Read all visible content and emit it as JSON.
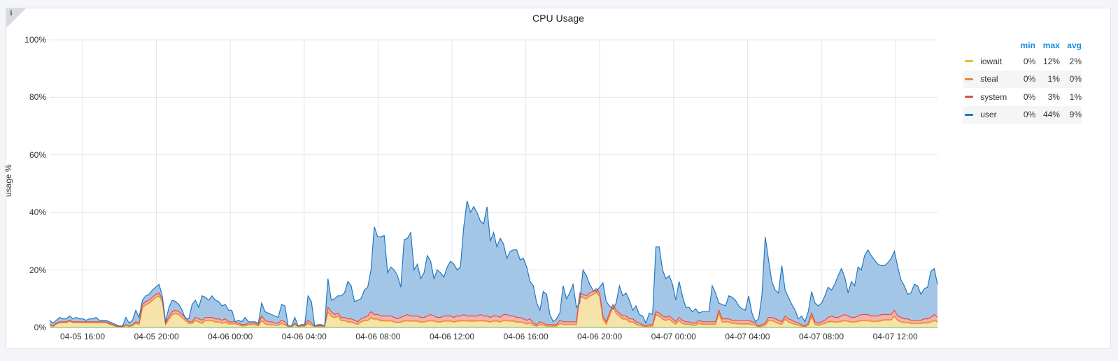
{
  "panel": {
    "title": "CPU Usage",
    "info_icon": "i"
  },
  "colors": {
    "iowait": "#eab839",
    "steal": "#ef843c",
    "system": "#e24d42",
    "user": "#1f78c1",
    "iowait_fill": "#f6e3ab",
    "steal_fill": "#f7c6a2",
    "system_fill": "#f3b3ae",
    "user_fill": "#a4c6e6",
    "grid": "#e4e5e8",
    "legend_header": "#1a8fde"
  },
  "legend": {
    "headers": [
      "min",
      "max",
      "avg"
    ],
    "items": [
      {
        "name": "iowait",
        "min": "0%",
        "max": "12%",
        "avg": "2%"
      },
      {
        "name": "steal",
        "min": "0%",
        "max": "1%",
        "avg": "0%"
      },
      {
        "name": "system",
        "min": "0%",
        "max": "3%",
        "avg": "1%"
      },
      {
        "name": "user",
        "min": "0%",
        "max": "44%",
        "avg": "9%"
      }
    ]
  },
  "chart_data": {
    "type": "area",
    "stacked": true,
    "title": "CPU Usage",
    "xlabel": "",
    "ylabel": "usage %",
    "ylim": [
      0,
      100
    ],
    "yticks": [
      "0%",
      "20%",
      "40%",
      "60%",
      "80%",
      "100%"
    ],
    "xticks": [
      "04-05 16:00",
      "04-05 20:00",
      "04-06 00:00",
      "04-06 04:00",
      "04-06 08:00",
      "04-06 12:00",
      "04-06 16:00",
      "04-06 20:00",
      "04-07 00:00",
      "04-07 04:00",
      "04-07 08:00",
      "04-07 12:00"
    ],
    "grid": true,
    "legend_position": "right",
    "x_start": "04-05 14:12",
    "x_end": "04-07 14:32",
    "sample_interval_min": 20,
    "series_order_bottom_to_top": [
      "iowait",
      "steal",
      "system",
      "user"
    ],
    "total": [
      2.5,
      1.5,
      2.5,
      3.5,
      3,
      3,
      4,
      3,
      3.5,
      3,
      3,
      2.5,
      3,
      3,
      3.5,
      2.5,
      2.5,
      2.5,
      2,
      1.5,
      1,
      0.5,
      0.5,
      3.5,
      1.5,
      2.5,
      6,
      3.5,
      9.5,
      11,
      11.5,
      13,
      14,
      15,
      11,
      2,
      7,
      9.5,
      9,
      8,
      6,
      3,
      3,
      8,
      9.5,
      7,
      11,
      10.5,
      9.5,
      11,
      9.5,
      9,
      7.5,
      8,
      6,
      6,
      2,
      2.5,
      2,
      3.5,
      2,
      2,
      2,
      1.5,
      8.5,
      5.5,
      5,
      4.5,
      4,
      3.5,
      8,
      7.5,
      0.5,
      0.5,
      3.5,
      0.5,
      1,
      1,
      11,
      9,
      0.5,
      1,
      1,
      0.5,
      17,
      9.5,
      10,
      11,
      11,
      12,
      16,
      14.5,
      9,
      9.5,
      10,
      13,
      14,
      20,
      35,
      31.5,
      31.5,
      32,
      19,
      21,
      20,
      18,
      14,
      30.5,
      31,
      33,
      20,
      22,
      17,
      19,
      25,
      23,
      17,
      20,
      19,
      17.5,
      21,
      23,
      22,
      20,
      21,
      35,
      44,
      40,
      42,
      40,
      37,
      36,
      42,
      30,
      33,
      28,
      31,
      29,
      24,
      26.5,
      27,
      27,
      23.5,
      24,
      21,
      16,
      14.5,
      8.5,
      6,
      12.5,
      11.5,
      4.5,
      2,
      3,
      5,
      14.5,
      10,
      12,
      15,
      7,
      8.5,
      20,
      18,
      15,
      13,
      12.5,
      14,
      15.5,
      9,
      7.5,
      6.5,
      8.5,
      14.5,
      11,
      12,
      9.5,
      6,
      7.5,
      4.5,
      4,
      1.5,
      5,
      4.5,
      28,
      28,
      20,
      17,
      18,
      15,
      9.5,
      16,
      11,
      7,
      7,
      5.5,
      6.5,
      5,
      5.5,
      5.5,
      5.5,
      14.5,
      12,
      8.5,
      8,
      7.5,
      11,
      10.5,
      9.5,
      7.5,
      6.5,
      6,
      11,
      5,
      2,
      3,
      11,
      31.5,
      23.5,
      16,
      13,
      12,
      21.5,
      13,
      10.5,
      8,
      6,
      3,
      4,
      2,
      5.5,
      12.5,
      8.5,
      7.5,
      8.5,
      11,
      14,
      13,
      15,
      18,
      20.5,
      17.5,
      12,
      16,
      14.5,
      21,
      20,
      25,
      27,
      25,
      23.5,
      22,
      21.5,
      21.5,
      22.5,
      24,
      26.5,
      21,
      16.5,
      14.5,
      11.5,
      12,
      15,
      14.5,
      11.5,
      13.5,
      14,
      19.5,
      20.5,
      15
    ],
    "system_top": [
      1,
      0.5,
      1.5,
      2,
      2,
      2,
      2.5,
      2,
      2,
      2,
      2,
      2,
      2,
      2,
      2,
      2,
      2,
      2,
      1.5,
      1,
      0.5,
      0.3,
      0.3,
      1,
      0.5,
      1,
      2,
      1.5,
      8,
      9,
      9.5,
      10.5,
      11.5,
      12,
      10,
      1.5,
      4,
      5.5,
      6,
      5.5,
      4.5,
      3.5,
      2,
      2,
      3.5,
      3,
      2.5,
      3.5,
      3.5,
      3.5,
      3,
      3,
      2.5,
      3,
      2,
      2,
      2,
      1.5,
      1,
      1,
      1.5,
      1.5,
      1.5,
      1,
      4,
      2.5,
      2,
      2,
      1.5,
      1.5,
      2.5,
      2,
      0.5,
      0.5,
      1.5,
      0.5,
      0.8,
      0.8,
      2.5,
      1.5,
      0.5,
      0.7,
      0.7,
      0.5,
      7,
      5.5,
      4.5,
      5,
      3.5,
      3.5,
      3,
      3,
      2.5,
      2,
      3,
      3.5,
      4,
      5.5,
      4.5,
      4.5,
      4,
      4,
      4,
      4,
      3.5,
      3,
      3.5,
      4,
      4.5,
      4,
      4,
      4,
      3.5,
      3.5,
      4,
      4.5,
      4,
      3.5,
      3.5,
      4,
      4,
      4,
      3.5,
      4,
      4,
      4.5,
      4,
      4,
      4,
      4,
      4.5,
      4,
      4,
      3.5,
      4,
      4,
      3.5,
      4.5,
      4.5,
      4,
      4,
      3.5,
      3.5,
      3,
      2.5,
      3,
      1.5,
      1,
      2,
      1.5,
      1,
      1,
      1,
      1,
      2.5,
      2,
      2,
      2,
      2,
      2,
      12,
      11.5,
      11,
      12,
      12.5,
      13.5,
      12,
      4,
      2,
      5,
      8,
      6,
      5,
      4,
      4,
      3,
      3,
      2,
      1.5,
      1,
      0.5,
      1,
      1,
      5.5,
      5,
      4,
      3.5,
      4,
      3,
      2,
      3.5,
      2.5,
      2,
      2,
      1.5,
      1.5,
      2.5,
      2,
      2,
      2,
      2,
      2,
      6,
      3,
      3,
      3,
      2.5,
      2.5,
      2.5,
      2.5,
      2.5,
      2.5,
      2,
      1.5,
      0.5,
      1,
      1.5,
      3.5,
      3.5,
      3,
      2.5,
      2,
      4,
      3,
      2.5,
      2,
      1.5,
      1,
      0.5,
      1.5,
      5,
      2,
      1.5,
      2,
      2.5,
      3.5,
      4,
      3.5,
      3.5,
      4,
      4.5,
      4,
      3.5,
      3.5,
      4,
      4.5,
      4.5,
      4.5,
      4,
      4,
      4,
      4.5,
      4.5,
      4.5,
      4.5,
      6,
      4,
      3.5,
      3,
      3,
      2.5,
      2.5,
      2.5,
      2.5,
      3,
      3,
      3.5,
      4.5,
      3.5
    ],
    "steal_top": [
      0.8,
      0.4,
      1.2,
      1.7,
      1.7,
      1.7,
      2.2,
      1.7,
      1.7,
      1.7,
      1.7,
      1.7,
      1.7,
      1.7,
      1.7,
      1.7,
      1.7,
      1.7,
      1.2,
      0.8,
      0.4,
      0.2,
      0.2,
      0.7,
      0.4,
      0.7,
      1.5,
      1.1,
      7,
      8,
      8.5,
      9.5,
      10.5,
      11,
      9,
      1.1,
      3,
      4.5,
      5,
      4.5,
      3.5,
      2.5,
      1.5,
      1.5,
      2.5,
      2,
      1.5,
      2.5,
      2.5,
      2.5,
      2,
      2,
      1.5,
      2,
      1.3,
      1.3,
      1.3,
      1,
      0.6,
      0.6,
      1,
      1,
      1,
      0.6,
      2.5,
      1.3,
      1,
      1,
      0.8,
      0.8,
      1.5,
      1,
      0.3,
      0.3,
      1,
      0.3,
      0.5,
      0.5,
      1.5,
      0.8,
      0.3,
      0.4,
      0.4,
      0.3,
      5.5,
      4,
      3.5,
      4,
      2.5,
      2.5,
      2,
      2,
      1.5,
      1.2,
      2,
      2.5,
      2.5,
      3.5,
      3,
      3,
      2.5,
      2.5,
      2.5,
      2.5,
      2,
      1.8,
      2,
      2.3,
      2.5,
      2.3,
      2.3,
      2.3,
      2,
      2,
      2.3,
      2.5,
      2.3,
      2,
      2,
      2.3,
      2.3,
      2.3,
      2,
      2.3,
      2.3,
      2.5,
      2.3,
      2.3,
      2.3,
      2.3,
      2.5,
      2.3,
      2.3,
      2,
      2.3,
      2.3,
      2,
      2.5,
      2.5,
      2.3,
      2.3,
      2,
      2,
      1.7,
      1.3,
      1.7,
      0.8,
      0.5,
      1.1,
      0.8,
      0.5,
      0.5,
      0.5,
      0.5,
      1.5,
      1.1,
      1.1,
      1.1,
      1.1,
      1.1,
      11,
      10.5,
      10,
      11,
      11.5,
      12.5,
      11,
      3,
      1.2,
      4,
      7,
      5,
      4,
      3,
      3,
      2,
      2,
      1.2,
      0.8,
      0.5,
      0.3,
      0.5,
      0.5,
      4.5,
      4,
      3,
      2.5,
      3,
      2,
      1.2,
      2.5,
      1.5,
      1.2,
      1.2,
      0.8,
      0.8,
      1.5,
      1.2,
      1.2,
      1.2,
      1.2,
      1.2,
      5,
      2,
      2,
      2,
      1.5,
      1.5,
      1.3,
      1.3,
      1.3,
      1.3,
      1.1,
      0.8,
      0.3,
      0.5,
      0.8,
      2.5,
      2.5,
      2,
      1.5,
      1.2,
      3,
      2,
      1.5,
      1.2,
      0.8,
      0.5,
      0.3,
      0.8,
      4,
      1.2,
      0.8,
      1.2,
      1.5,
      2,
      2.2,
      2,
      2,
      2.2,
      2.5,
      2.2,
      2,
      2,
      2.2,
      2.5,
      2.5,
      2.5,
      2.2,
      2.2,
      2.2,
      2.5,
      2.7,
      2.7,
      2.7,
      4,
      2.5,
      2,
      1.8,
      1.8,
      1.5,
      1.5,
      1.5,
      1.5,
      1.7,
      1.7,
      2,
      2.5,
      2
    ],
    "iowait_top": [
      0.7,
      0.3,
      1.1,
      1.6,
      1.6,
      1.6,
      2.1,
      1.6,
      1.6,
      1.6,
      1.6,
      1.6,
      1.6,
      1.6,
      1.6,
      1.6,
      1.6,
      1.6,
      1.1,
      0.7,
      0.3,
      0.1,
      0.1,
      0.6,
      0.3,
      0.6,
      1.4,
      1,
      6.8,
      7.8,
      8.3,
      9.3,
      10.3,
      10.8,
      8.8,
      1,
      2.8,
      4.3,
      4.8,
      4.3,
      3.3,
      2.3,
      1.3,
      1.3,
      2.3,
      1.8,
      1.3,
      2.3,
      2.3,
      2.3,
      1.8,
      1.8,
      1.3,
      1.8,
      1.2,
      1.2,
      1.2,
      0.9,
      0.5,
      0.5,
      0.9,
      0.9,
      0.9,
      0.5,
      2.3,
      1.2,
      0.9,
      0.9,
      0.7,
      0.7,
      1.3,
      0.9,
      0.2,
      0.2,
      0.9,
      0.2,
      0.4,
      0.4,
      1.3,
      0.7,
      0.2,
      0.3,
      0.3,
      0.2,
      5.3,
      3.8,
      3.3,
      3.8,
      2.3,
      2.3,
      1.8,
      1.8,
      1.3,
      1,
      1.8,
      2.3,
      2.3,
      3.2,
      2.7,
      2.7,
      2.2,
      2.2,
      2.2,
      2.2,
      1.8,
      1.6,
      1.8,
      2.1,
      2.3,
      2.1,
      2.1,
      2.1,
      1.8,
      1.8,
      2.1,
      2.3,
      2.1,
      1.8,
      1.8,
      2.1,
      2.1,
      2.1,
      1.8,
      2.1,
      2.1,
      2.3,
      2.1,
      2.1,
      2.1,
      2.1,
      2.3,
      2.1,
      2.1,
      1.8,
      2.1,
      2.1,
      1.8,
      2.3,
      2.3,
      2.1,
      2.1,
      1.8,
      1.8,
      1.5,
      1.1,
      1.5,
      0.7,
      0.4,
      1,
      0.7,
      0.4,
      0.4,
      0.4,
      0.4,
      1.3,
      1,
      1,
      1,
      1,
      1,
      10.8,
      10.3,
      9.8,
      10.8,
      11.3,
      12,
      10.8,
      2.8,
      1,
      3.8,
      6.8,
      4.8,
      3.8,
      2.8,
      2.8,
      1.8,
      1.8,
      1,
      0.7,
      0.4,
      0.2,
      0.4,
      0.4,
      4.3,
      3.8,
      2.8,
      2.3,
      2.8,
      1.8,
      1,
      2.3,
      1.3,
      1,
      1,
      0.7,
      0.7,
      1.3,
      1,
      1,
      1,
      1,
      1,
      4.8,
      1.8,
      1.8,
      1.8,
      1.3,
      1.3,
      1.1,
      1.1,
      1.1,
      1.1,
      1,
      0.7,
      0.2,
      0.4,
      0.7,
      2.3,
      2.3,
      1.8,
      1.3,
      1,
      2.8,
      1.8,
      1.3,
      1,
      0.7,
      0.4,
      0.2,
      0.7,
      3.8,
      1,
      0.7,
      1,
      1.3,
      1.8,
      2,
      1.8,
      1.8,
      2,
      2.3,
      2,
      1.8,
      1.8,
      2,
      2.3,
      2.3,
      2.3,
      2,
      2,
      2,
      2.3,
      2.5,
      2.5,
      2.5,
      3.8,
      2.3,
      1.8,
      1.6,
      1.6,
      1.3,
      1.3,
      1.3,
      1.3,
      1.5,
      1.5,
      1.8,
      2.3,
      1.8
    ]
  }
}
